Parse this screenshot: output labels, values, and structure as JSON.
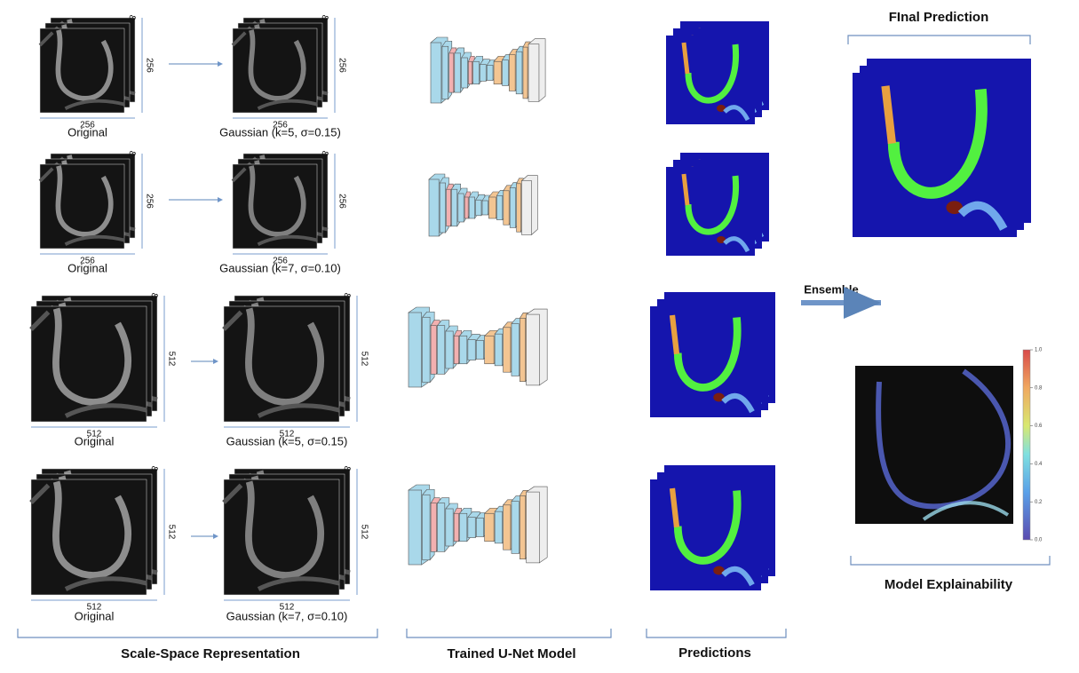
{
  "rows": [
    {
      "original": {
        "width": "256",
        "height": "256",
        "depth": "3",
        "label": "Original"
      },
      "gaussian": {
        "width": "256",
        "height": "256",
        "depth": "3",
        "label": "Gaussian (k=5, σ=0.15)"
      }
    },
    {
      "original": {
        "width": "256",
        "height": "256",
        "depth": "3",
        "label": "Original"
      },
      "gaussian": {
        "width": "256",
        "height": "256",
        "depth": "3",
        "label": "Gaussian (k=7, σ=0.10)"
      }
    },
    {
      "original": {
        "width": "512",
        "height": "512",
        "depth": "3",
        "label": "Original"
      },
      "gaussian": {
        "width": "512",
        "height": "512",
        "depth": "3",
        "label": "Gaussian (k=5, σ=0.15)"
      }
    },
    {
      "original": {
        "width": "512",
        "height": "512",
        "depth": "3",
        "label": "Original"
      },
      "gaussian": {
        "width": "512",
        "height": "512",
        "depth": "3",
        "label": "Gaussian (k=7, σ=0.10)"
      }
    }
  ],
  "sections": {
    "scale_space": "Scale-Space Representation",
    "unet": "Trained U-Net Model",
    "predictions": "Predictions",
    "final_prediction": "FInal Prediction",
    "explainability": "Model Explainability",
    "ensemble": "Ensemble"
  },
  "colorbar_ticks": [
    "1.0",
    "0.8",
    "0.6",
    "0.4",
    "0.2",
    "0.0"
  ]
}
